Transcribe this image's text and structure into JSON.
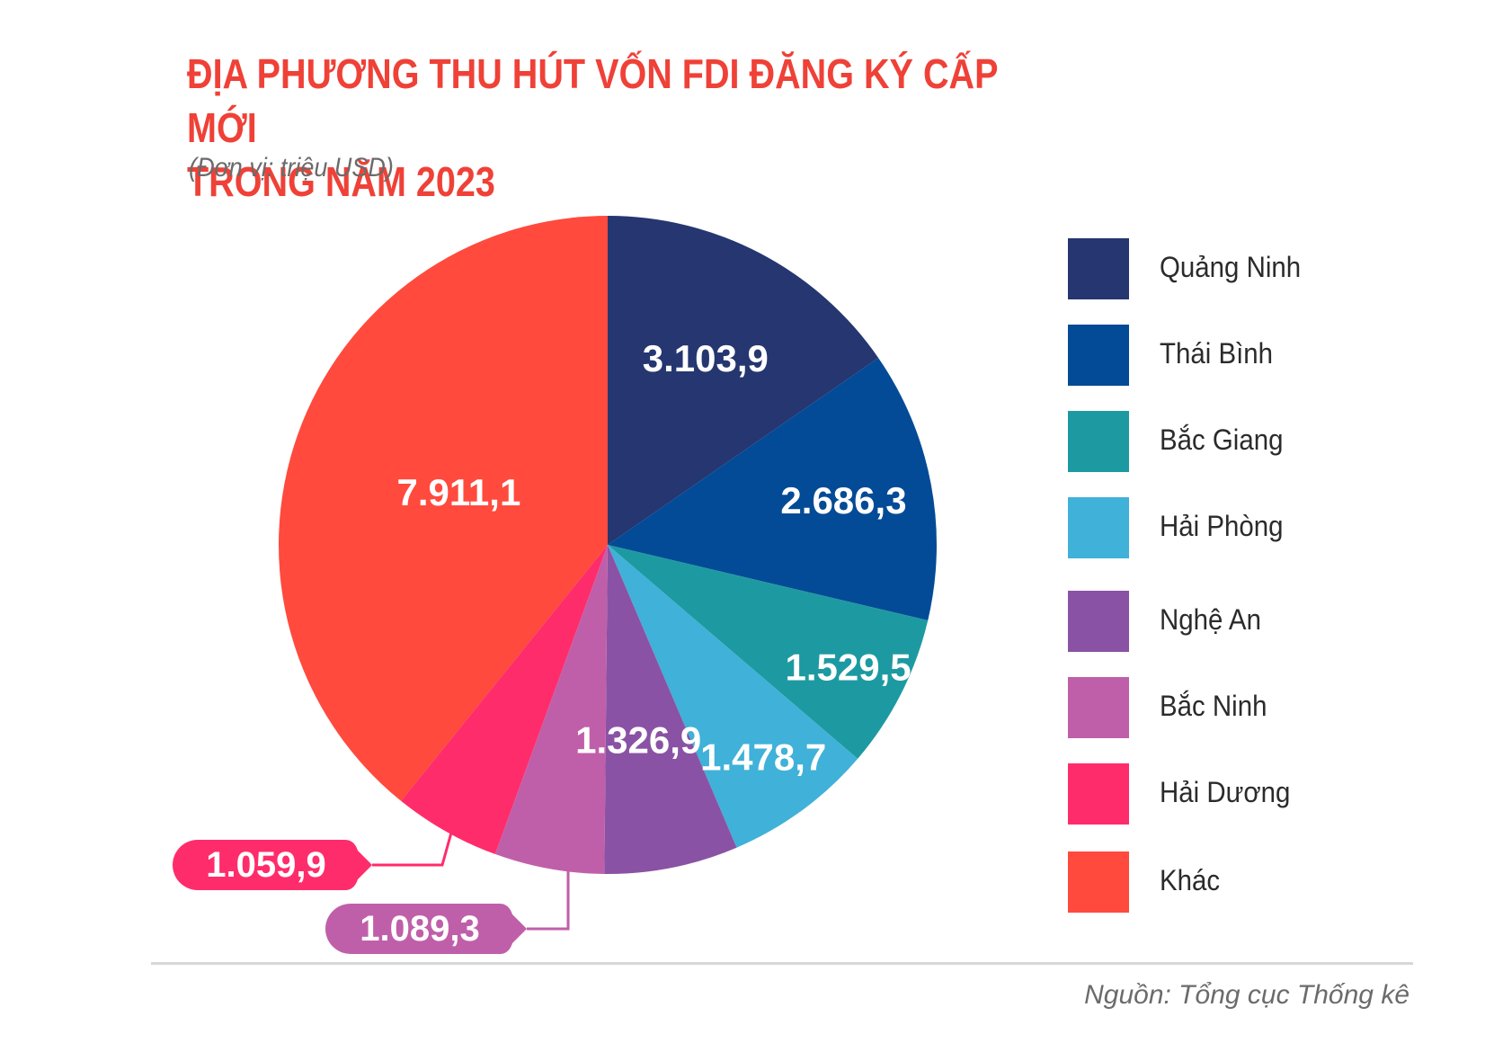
{
  "title_line1": "ĐỊA PHƯƠNG THU HÚT VỐN FDI ĐĂNG KÝ CẤP MỚI",
  "title_line2": "TRONG NĂM 2023",
  "subtitle": "(Đơn vị: triệu USD)",
  "source": "Nguồn: Tổng cục Thống kê",
  "chart_data": {
    "type": "pie",
    "unit": "triệu USD",
    "legend_position": "right",
    "start": "top, clockwise",
    "slices": [
      {
        "label": "Quảng Ninh",
        "value": 3103.9,
        "display": "3.103,9",
        "color": "#253670"
      },
      {
        "label": "Thái Bình",
        "value": 2686.3,
        "display": "2.686,3",
        "color": "#034b96"
      },
      {
        "label": "Bắc Giang",
        "value": 1529.5,
        "display": "1.529,5",
        "color": "#1d9aa1"
      },
      {
        "label": "Hải Phòng",
        "value": 1478.7,
        "display": "1.478,7",
        "color": "#40b1d8"
      },
      {
        "label": "Nghệ An",
        "value": 1326.9,
        "display": "1.326,9",
        "color": "#8a52a4"
      },
      {
        "label": "Bắc Ninh",
        "value": 1089.3,
        "display": "1.089,3",
        "color": "#c05fa9"
      },
      {
        "label": "Hải Dương",
        "value": 1059.9,
        "display": "1.059,9",
        "color": "#ff2c6b"
      },
      {
        "label": "Khác",
        "value": 7911.1,
        "display": "7.911,1",
        "color": "#ff4a3d"
      }
    ]
  }
}
